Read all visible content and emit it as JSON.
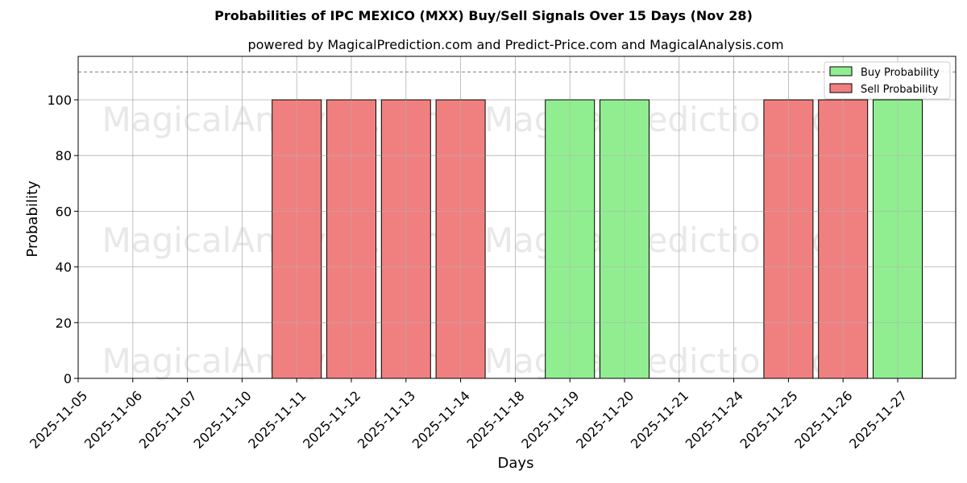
{
  "chart_data": {
    "type": "bar",
    "title": "Probabilities of IPC MEXICO (MXX) Buy/Sell Signals Over 15 Days (Nov 28)",
    "subtitle": "powered by MagicalPrediction.com and Predict-Price.com and MagicalAnalysis.com",
    "xlabel": "Days",
    "ylabel": "Probability",
    "ylim": [
      0,
      115
    ],
    "yticks": [
      0,
      20,
      40,
      60,
      80,
      100
    ],
    "grid": true,
    "reference_line": {
      "y": 110,
      "style": "dashed",
      "color": "#808080"
    },
    "legend_position": "upper right",
    "categories": [
      "2025-11-05",
      "2025-11-06",
      "2025-11-07",
      "2025-11-10",
      "2025-11-11",
      "2025-11-12",
      "2025-11-13",
      "2025-11-14",
      "2025-11-18",
      "2025-11-19",
      "2025-11-20",
      "2025-11-21",
      "2025-11-24",
      "2025-11-25",
      "2025-11-26",
      "2025-11-27"
    ],
    "series": [
      {
        "name": "Buy Probability",
        "color": "#90EE90",
        "values": [
          0,
          0,
          0,
          0,
          0,
          0,
          0,
          0,
          0,
          100,
          100,
          0,
          0,
          0,
          0,
          100
        ]
      },
      {
        "name": "Sell Probability",
        "color": "#F08080",
        "values": [
          0,
          0,
          0,
          0,
          100,
          100,
          100,
          100,
          0,
          0,
          0,
          0,
          0,
          100,
          100,
          0
        ]
      }
    ],
    "bars": [
      {
        "date": "2025-11-11",
        "signal": "Sell",
        "value": 100
      },
      {
        "date": "2025-11-12",
        "signal": "Sell",
        "value": 100
      },
      {
        "date": "2025-11-13",
        "signal": "Sell",
        "value": 100
      },
      {
        "date": "2025-11-14",
        "signal": "Sell",
        "value": 100
      },
      {
        "date": "2025-11-19",
        "signal": "Buy",
        "value": 100
      },
      {
        "date": "2025-11-20",
        "signal": "Buy",
        "value": 100
      },
      {
        "date": "2025-11-25",
        "signal": "Sell",
        "value": 100
      },
      {
        "date": "2025-11-26",
        "signal": "Sell",
        "value": 100
      },
      {
        "date": "2025-11-27",
        "signal": "Buy",
        "value": 100
      }
    ],
    "watermarks": [
      "MagicalAnalysis.com",
      "MagicalPrediction.com"
    ]
  }
}
